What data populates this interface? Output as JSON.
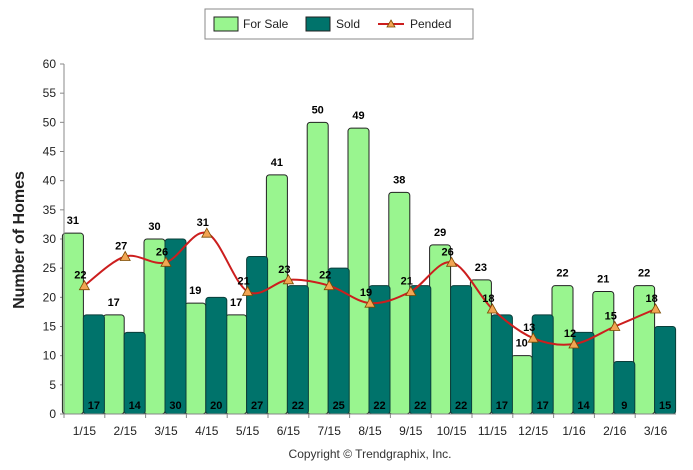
{
  "chart_data": {
    "type": "bar",
    "categories": [
      "1/15",
      "2/15",
      "3/15",
      "4/15",
      "5/15",
      "6/15",
      "7/15",
      "8/15",
      "9/15",
      "10/15",
      "11/15",
      "12/15",
      "1/16",
      "2/16",
      "3/16"
    ],
    "series": [
      {
        "name": "For Sale",
        "kind": "bar",
        "values": [
          31,
          17,
          30,
          19,
          17,
          41,
          50,
          49,
          38,
          29,
          23,
          10,
          22,
          21,
          22
        ]
      },
      {
        "name": "Sold",
        "kind": "bar",
        "values": [
          17,
          14,
          30,
          20,
          27,
          22,
          25,
          22,
          22,
          22,
          17,
          17,
          14,
          9,
          15
        ]
      },
      {
        "name": "Pended",
        "kind": "line",
        "values": [
          22,
          27,
          26,
          31,
          21,
          23,
          22,
          19,
          21,
          26,
          18,
          13,
          12,
          15,
          18
        ]
      }
    ],
    "ylabel": "Number of Homes",
    "ylim": [
      0,
      60
    ],
    "yticks": [
      0,
      5,
      10,
      15,
      20,
      25,
      30,
      35,
      40,
      45,
      50,
      55,
      60
    ],
    "legend": "top-center",
    "grid": false,
    "colors": {
      "for_sale": "#99f58f",
      "sold": "#00736b",
      "pended": "#cc1e1e",
      "marker": "#f2a553"
    },
    "copyright": "Copyright © Trendgraphix, Inc."
  }
}
